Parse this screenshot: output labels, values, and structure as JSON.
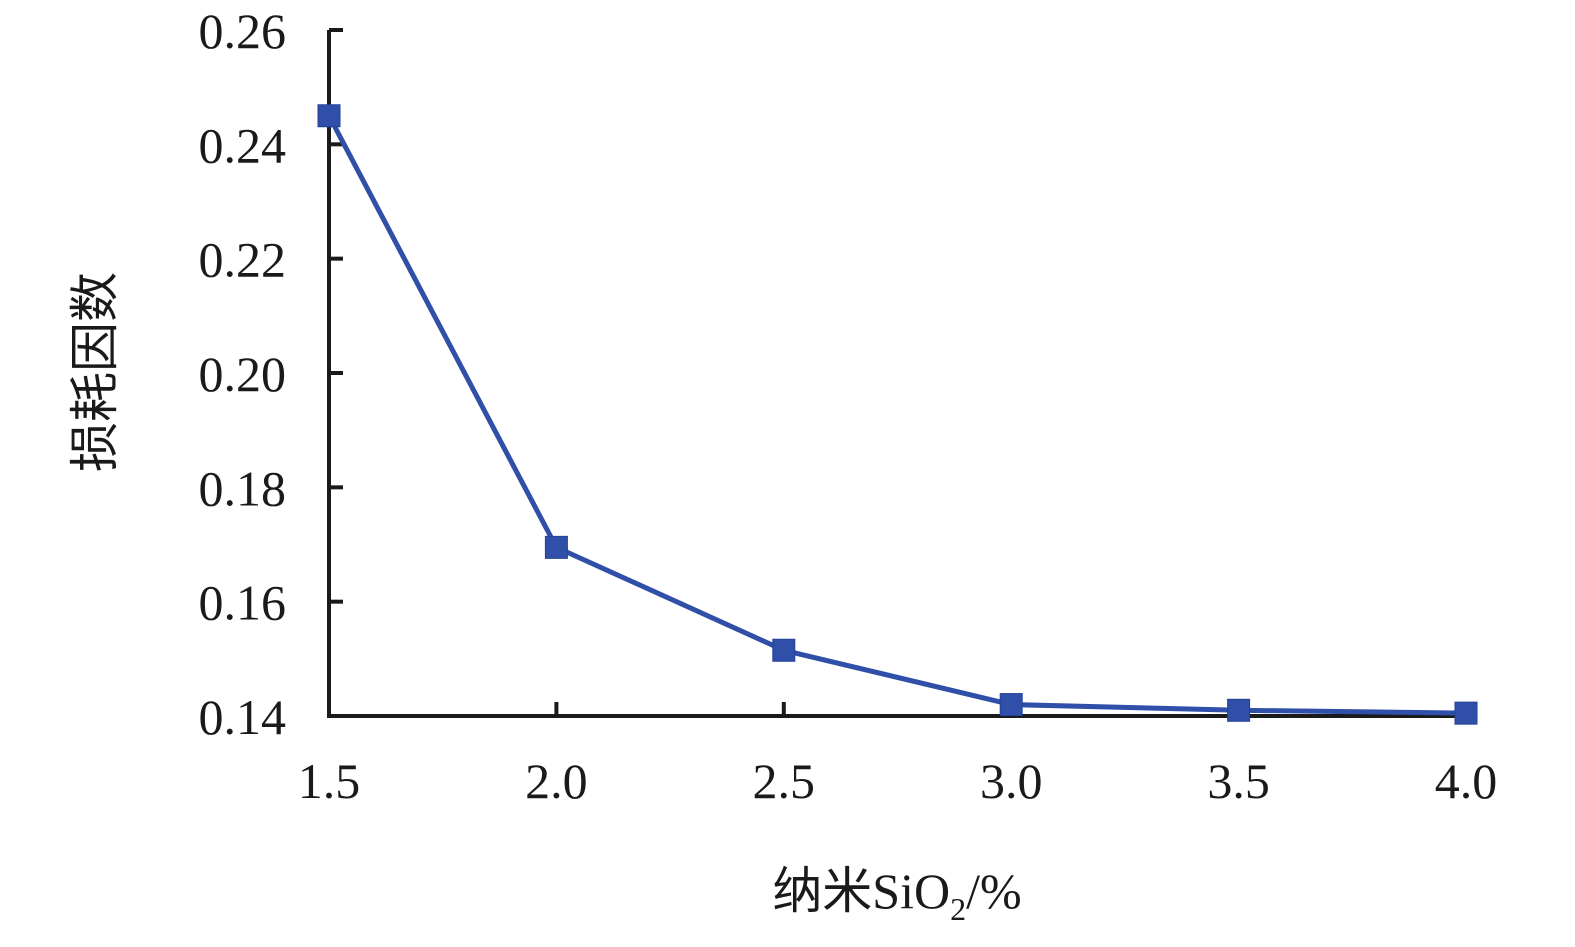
{
  "chart_data": {
    "type": "line",
    "x": [
      1.5,
      2.0,
      2.5,
      3.0,
      3.5,
      4.0
    ],
    "x_tick_labels": [
      "1.5",
      "2.0",
      "2.5",
      "3.0",
      "3.5",
      "4.0"
    ],
    "y_tick_values": [
      0.14,
      0.16,
      0.18,
      0.2,
      0.22,
      0.24,
      0.26
    ],
    "y_tick_labels": [
      "0.14",
      "0.16",
      "0.18",
      "0.20",
      "0.22",
      "0.24",
      "0.26"
    ],
    "series": [
      {
        "values": [
          0.245,
          0.1695,
          0.1515,
          0.142,
          0.141,
          0.1405
        ]
      }
    ],
    "xlabel": "纳米SiO",
    "xlabel_subscript": "2",
    "xlabel_suffix": "/%",
    "ylabel": "损耗因数",
    "xlim": [
      1.5,
      4.0
    ],
    "ylim": [
      0.14,
      0.26
    ],
    "grid": false,
    "legend": "none",
    "marker": "square",
    "color": "#2f4fa8"
  }
}
